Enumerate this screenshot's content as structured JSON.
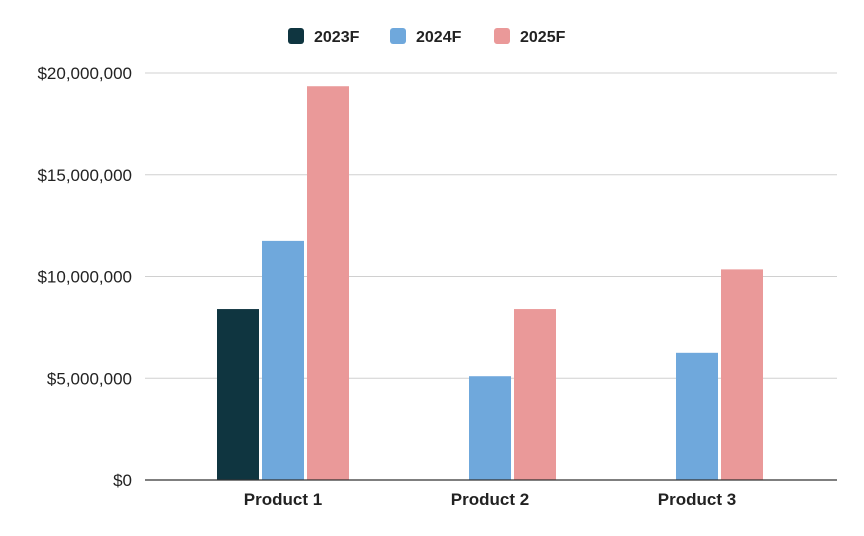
{
  "chart_data": {
    "type": "bar",
    "categories": [
      "Product 1",
      "Product 2",
      "Product 3"
    ],
    "series": [
      {
        "name": "2023F",
        "color": "#0f3540",
        "values": [
          8400000,
          null,
          null
        ]
      },
      {
        "name": "2024F",
        "color": "#6fa8dc",
        "values": [
          11750000,
          5100000,
          6250000
        ]
      },
      {
        "name": "2025F",
        "color": "#ea9999",
        "values": [
          19350000,
          8400000,
          10350000
        ]
      }
    ],
    "ylim": [
      0,
      20000000
    ],
    "yticks": [
      0,
      5000000,
      10000000,
      15000000,
      20000000
    ],
    "ytick_labels": [
      "$0",
      "$5,000,000",
      "$10,000,000",
      "$15,000,000",
      "$20,000,000"
    ],
    "title": "",
    "xlabel": "",
    "ylabel": "",
    "grid": true,
    "legend_position": "top-center"
  }
}
